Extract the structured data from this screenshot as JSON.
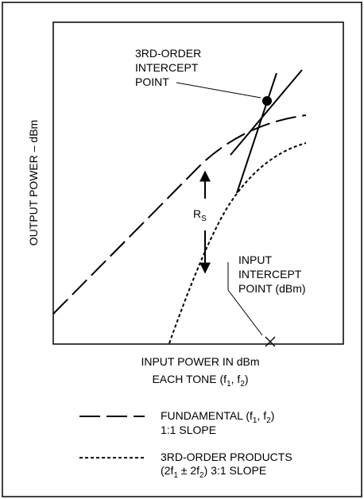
{
  "diagram": {
    "y_axis_label": "OUTPUT POWER – dBm",
    "x_axis_label": {
      "line1": "INPUT POWER IN dBm",
      "line2": [
        "EACH TONE (f",
        "1",
        ", f",
        "2",
        ")"
      ]
    },
    "intercept_label": [
      "3RD-ORDER",
      "INTERCEPT",
      "POINT"
    ],
    "input_intercept_label": [
      "INPUT",
      "INTERCEPT",
      "POINT (dBm)"
    ],
    "rs_label": [
      "R",
      "S"
    ],
    "legend": [
      {
        "line1": [
          "FUNDAMENTAL (f",
          "1",
          ", f",
          "2",
          ")"
        ],
        "line2": "1:1 SLOPE"
      },
      {
        "line1": [
          "3RD-ORDER PRODUCTS"
        ],
        "line2": [
          "(2f",
          "1",
          " ± 2f",
          "2",
          ") 3:1 SLOPE"
        ]
      }
    ]
  }
}
